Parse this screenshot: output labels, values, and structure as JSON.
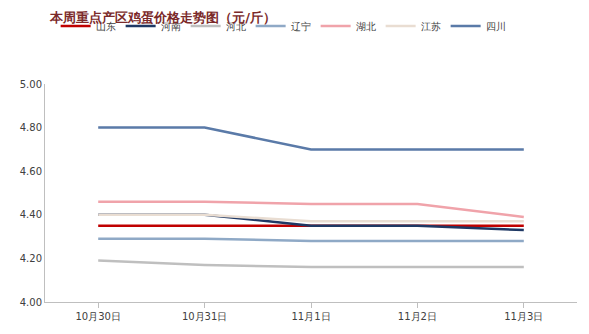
{
  "chart_data": {
    "type": "line",
    "title": "本周重点产区鸡蛋价格走势图（元/斤）",
    "categories": [
      "10月30日",
      "10月31日",
      "11月1日",
      "11月2日",
      "11月3日"
    ],
    "series": [
      {
        "name": "山东",
        "color": "#c00000",
        "values": [
          4.35,
          4.35,
          4.35,
          4.35,
          4.35
        ]
      },
      {
        "name": "河南",
        "color": "#1f3864",
        "values": [
          4.4,
          4.4,
          4.35,
          4.35,
          4.33
        ]
      },
      {
        "name": "河北",
        "color": "#bfbfbf",
        "values": [
          4.19,
          4.17,
          4.16,
          4.16,
          4.16
        ]
      },
      {
        "name": "辽宁",
        "color": "#8fa9c6",
        "values": [
          4.29,
          4.29,
          4.28,
          4.28,
          4.28
        ]
      },
      {
        "name": "湖北",
        "color": "#f0a3aa",
        "values": [
          4.46,
          4.46,
          4.45,
          4.45,
          4.39
        ]
      },
      {
        "name": "江苏",
        "color": "#e9ddd2",
        "values": [
          4.4,
          4.4,
          4.37,
          4.37,
          4.37
        ]
      },
      {
        "name": "四川",
        "color": "#5a7aa8",
        "values": [
          4.8,
          4.8,
          4.7,
          4.7,
          4.7
        ]
      }
    ],
    "ylim": [
      4.0,
      5.0
    ],
    "yticks": [
      {
        "value": 4.0,
        "label": "4.00"
      },
      {
        "value": 4.2,
        "label": "4.20"
      },
      {
        "value": 4.4,
        "label": "4.40"
      },
      {
        "value": 4.6,
        "label": "4.60"
      },
      {
        "value": 4.8,
        "label": "4.80"
      },
      {
        "value": 5.0,
        "label": "5.00"
      }
    ],
    "grid": false,
    "legend": "top"
  }
}
